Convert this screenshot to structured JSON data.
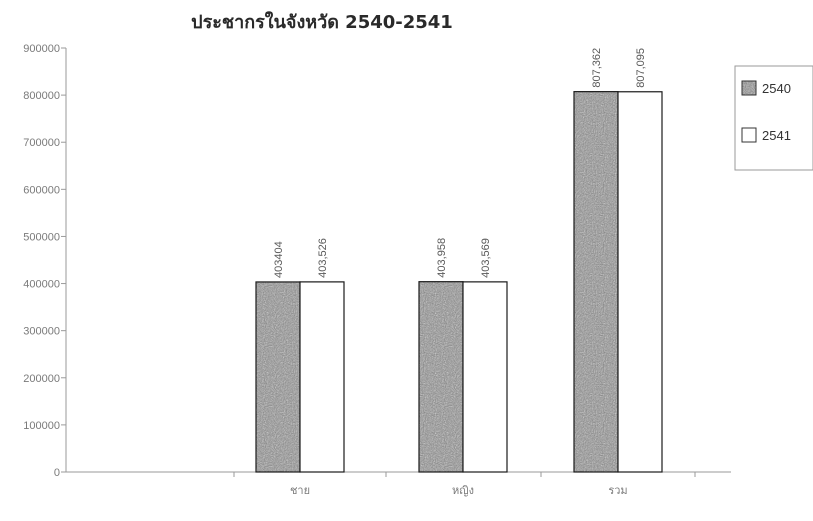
{
  "chart_data": {
    "type": "bar",
    "title": "ประชากรในจังหวัด 2540-2541",
    "xlabel": "",
    "ylabel": "",
    "categories": [
      "ชาย",
      "หญิง",
      "รวม"
    ],
    "series": [
      {
        "name": "2540",
        "values": [
          403404,
          403958,
          807362
        ],
        "labels": [
          "403404",
          "403,958",
          "807,362"
        ],
        "fill": "textured-gray"
      },
      {
        "name": "2541",
        "values": [
          403526,
          403569,
          807095
        ],
        "labels": [
          "403,526",
          "403,569",
          "807,095"
        ],
        "fill": "white"
      }
    ],
    "ylim": [
      0,
      900000
    ],
    "yticks": [
      "0",
      "100000",
      "200000",
      "300000",
      "400000",
      "500000",
      "600000",
      "700000",
      "800000",
      "900000"
    ],
    "grid": false,
    "legend_position": "right"
  },
  "colors": {
    "series_2540": "#8c8c8c",
    "series_2541": "#ffffff",
    "axis": "#9a9a9a",
    "bar_outline": "#1a1a1a"
  }
}
